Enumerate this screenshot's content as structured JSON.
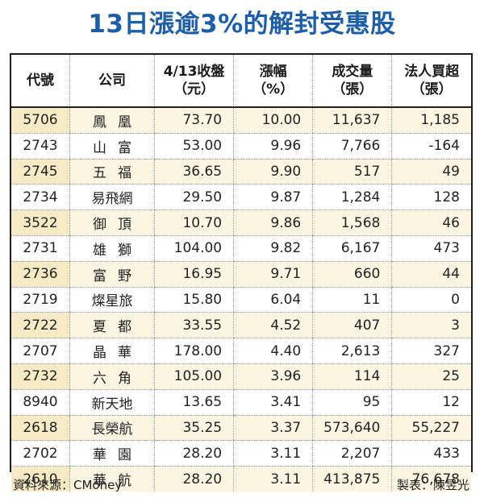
{
  "title": "13日漲逾3%的解封受惠股",
  "headers": {
    "code": "代號",
    "company": "公司",
    "close_line1": "4/13收盤",
    "close_line2": "（元）",
    "change_line1": "漲幅",
    "change_line2": "（%）",
    "volume_line1": "成交量",
    "volume_line2": "（張）",
    "net_line1": "法人買超",
    "net_line2": "（張）"
  },
  "rows": [
    {
      "code": "5706",
      "company": "鳳凰",
      "close": "73.70",
      "change": "10.00",
      "volume": "11,637",
      "net": "1,185"
    },
    {
      "code": "2743",
      "company": "山富",
      "close": "53.00",
      "change": "9.96",
      "volume": "7,766",
      "net": "-164"
    },
    {
      "code": "2745",
      "company": "五福",
      "close": "36.65",
      "change": "9.90",
      "volume": "517",
      "net": "49"
    },
    {
      "code": "2734",
      "company": "易飛網",
      "close": "29.50",
      "change": "9.87",
      "volume": "1,284",
      "net": "128"
    },
    {
      "code": "3522",
      "company": "御頂",
      "close": "10.70",
      "change": "9.86",
      "volume": "1,568",
      "net": "46"
    },
    {
      "code": "2731",
      "company": "雄獅",
      "close": "104.00",
      "change": "9.82",
      "volume": "6,167",
      "net": "473"
    },
    {
      "code": "2736",
      "company": "富野",
      "close": "16.95",
      "change": "9.71",
      "volume": "660",
      "net": "44"
    },
    {
      "code": "2719",
      "company": "燦星旅",
      "close": "15.80",
      "change": "6.04",
      "volume": "11",
      "net": "0"
    },
    {
      "code": "2722",
      "company": "夏都",
      "close": "33.55",
      "change": "4.52",
      "volume": "407",
      "net": "3"
    },
    {
      "code": "2707",
      "company": "晶華",
      "close": "178.00",
      "change": "4.40",
      "volume": "2,613",
      "net": "327"
    },
    {
      "code": "2732",
      "company": "六角",
      "close": "105.00",
      "change": "3.96",
      "volume": "114",
      "net": "25"
    },
    {
      "code": "8940",
      "company": "新天地",
      "close": "13.65",
      "change": "3.41",
      "volume": "95",
      "net": "12"
    },
    {
      "code": "2618",
      "company": "長榮航",
      "close": "35.25",
      "change": "3.37",
      "volume": "573,640",
      "net": "55,227"
    },
    {
      "code": "2702",
      "company": "華園",
      "close": "28.20",
      "change": "3.11",
      "volume": "2,207",
      "net": "433"
    },
    {
      "code": "2610",
      "company": "華航",
      "close": "28.20",
      "change": "3.11",
      "volume": "413,875",
      "net": "76,678"
    }
  ],
  "source": "資料來源：CMoney",
  "credit": "製表：陳昱光"
}
